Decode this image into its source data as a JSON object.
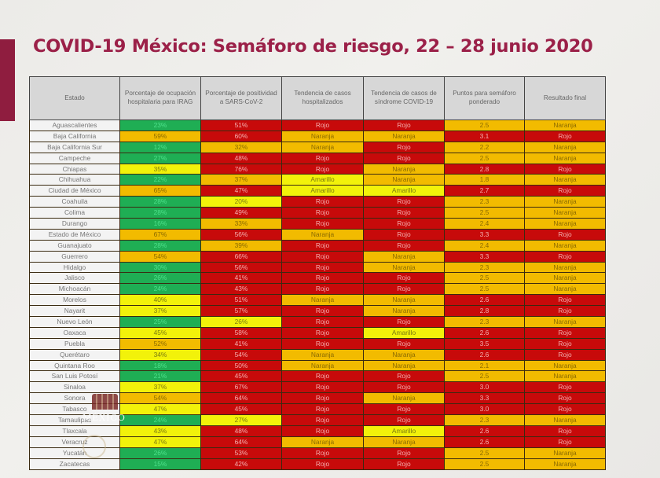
{
  "slide": {
    "title": "COVID-19 México: Semáforo de riesgo, 22 – 28 junio 2020",
    "accent_color": "#9b2048"
  },
  "colors": {
    "Verde": "#1fae54",
    "Amarillo": "#f2f20a",
    "Naranja": "#f2bb00",
    "Rojo": "#c70a0a"
  },
  "table": {
    "headers": [
      "Estado",
      "Porcentaje de ocupación hospitalaria para IRAG",
      "Porcentaje de positividad a SARS-CoV-2",
      "Tendencia de casos hospitalizados",
      "Tendencia de casos de síndrome COVID-19",
      "Puntos para semáforo ponderado",
      "Resultado final"
    ],
    "rows": [
      {
        "estado": "Aguascalientes",
        "ocupacion": "23%",
        "ocupacion_color": "Verde",
        "positividad": "51%",
        "positividad_color": "Rojo",
        "tend_hosp": "Rojo",
        "tend_covid": "Rojo",
        "puntos": "2.5",
        "puntos_color": "Naranja",
        "resultado": "Naranja"
      },
      {
        "estado": "Baja California",
        "ocupacion": "59%",
        "ocupacion_color": "Naranja",
        "positividad": "60%",
        "positividad_color": "Rojo",
        "tend_hosp": "Naranja",
        "tend_covid": "Naranja",
        "puntos": "3.1",
        "puntos_color": "Rojo",
        "resultado": "Rojo"
      },
      {
        "estado": "Baja California Sur",
        "ocupacion": "12%",
        "ocupacion_color": "Verde",
        "positividad": "32%",
        "positividad_color": "Naranja",
        "tend_hosp": "Naranja",
        "tend_covid": "Rojo",
        "puntos": "2.2",
        "puntos_color": "Naranja",
        "resultado": "Naranja"
      },
      {
        "estado": "Campeche",
        "ocupacion": "27%",
        "ocupacion_color": "Verde",
        "positividad": "48%",
        "positividad_color": "Rojo",
        "tend_hosp": "Rojo",
        "tend_covid": "Rojo",
        "puntos": "2.5",
        "puntos_color": "Naranja",
        "resultado": "Naranja"
      },
      {
        "estado": "Chiapas",
        "ocupacion": "35%",
        "ocupacion_color": "Amarillo",
        "positividad": "76%",
        "positividad_color": "Rojo",
        "tend_hosp": "Rojo",
        "tend_covid": "Naranja",
        "puntos": "2.8",
        "puntos_color": "Rojo",
        "resultado": "Rojo"
      },
      {
        "estado": "Chihuahua",
        "ocupacion": "22%",
        "ocupacion_color": "Verde",
        "positividad": "37%",
        "positividad_color": "Naranja",
        "tend_hosp": "Amarillo",
        "tend_covid": "Naranja",
        "puntos": "1.8",
        "puntos_color": "Naranja",
        "resultado": "Naranja"
      },
      {
        "estado": "Ciudad de México",
        "ocupacion": "65%",
        "ocupacion_color": "Naranja",
        "positividad": "47%",
        "positividad_color": "Rojo",
        "tend_hosp": "Amarillo",
        "tend_covid": "Amarillo",
        "puntos": "2.7",
        "puntos_color": "Rojo",
        "resultado": "Rojo"
      },
      {
        "estado": "Coahuila",
        "ocupacion": "28%",
        "ocupacion_color": "Verde",
        "positividad": "20%",
        "positividad_color": "Amarillo",
        "tend_hosp": "Rojo",
        "tend_covid": "Rojo",
        "puntos": "2.3",
        "puntos_color": "Naranja",
        "resultado": "Naranja"
      },
      {
        "estado": "Colima",
        "ocupacion": "28%",
        "ocupacion_color": "Verde",
        "positividad": "49%",
        "positividad_color": "Rojo",
        "tend_hosp": "Rojo",
        "tend_covid": "Rojo",
        "puntos": "2.5",
        "puntos_color": "Naranja",
        "resultado": "Naranja"
      },
      {
        "estado": "Durango",
        "ocupacion": "16%",
        "ocupacion_color": "Verde",
        "positividad": "33%",
        "positividad_color": "Naranja",
        "tend_hosp": "Rojo",
        "tend_covid": "Rojo",
        "puntos": "2.4",
        "puntos_color": "Naranja",
        "resultado": "Naranja"
      },
      {
        "estado": "Estado de México",
        "ocupacion": "67%",
        "ocupacion_color": "Naranja",
        "positividad": "56%",
        "positividad_color": "Rojo",
        "tend_hosp": "Naranja",
        "tend_covid": "Rojo",
        "puntos": "3.3",
        "puntos_color": "Rojo",
        "resultado": "Rojo"
      },
      {
        "estado": "Guanajuato",
        "ocupacion": "28%",
        "ocupacion_color": "Verde",
        "positividad": "39%",
        "positividad_color": "Naranja",
        "tend_hosp": "Rojo",
        "tend_covid": "Rojo",
        "puntos": "2.4",
        "puntos_color": "Naranja",
        "resultado": "Naranja"
      },
      {
        "estado": "Guerrero",
        "ocupacion": "54%",
        "ocupacion_color": "Naranja",
        "positividad": "66%",
        "positividad_color": "Rojo",
        "tend_hosp": "Rojo",
        "tend_covid": "Naranja",
        "puntos": "3.3",
        "puntos_color": "Rojo",
        "resultado": "Rojo"
      },
      {
        "estado": "Hidalgo",
        "ocupacion": "30%",
        "ocupacion_color": "Verde",
        "positividad": "56%",
        "positividad_color": "Rojo",
        "tend_hosp": "Rojo",
        "tend_covid": "Naranja",
        "puntos": "2.3",
        "puntos_color": "Naranja",
        "resultado": "Naranja"
      },
      {
        "estado": "Jalisco",
        "ocupacion": "26%",
        "ocupacion_color": "Verde",
        "positividad": "41%",
        "positividad_color": "Rojo",
        "tend_hosp": "Rojo",
        "tend_covid": "Rojo",
        "puntos": "2.5",
        "puntos_color": "Naranja",
        "resultado": "Naranja"
      },
      {
        "estado": "Michoacán",
        "ocupacion": "24%",
        "ocupacion_color": "Verde",
        "positividad": "43%",
        "positividad_color": "Rojo",
        "tend_hosp": "Rojo",
        "tend_covid": "Rojo",
        "puntos": "2.5",
        "puntos_color": "Naranja",
        "resultado": "Naranja"
      },
      {
        "estado": "Morelos",
        "ocupacion": "40%",
        "ocupacion_color": "Amarillo",
        "positividad": "51%",
        "positividad_color": "Rojo",
        "tend_hosp": "Naranja",
        "tend_covid": "Naranja",
        "puntos": "2.6",
        "puntos_color": "Rojo",
        "resultado": "Rojo"
      },
      {
        "estado": "Nayarit",
        "ocupacion": "37%",
        "ocupacion_color": "Amarillo",
        "positividad": "57%",
        "positividad_color": "Rojo",
        "tend_hosp": "Rojo",
        "tend_covid": "Naranja",
        "puntos": "2.8",
        "puntos_color": "Rojo",
        "resultado": "Rojo"
      },
      {
        "estado": "Nuevo León",
        "ocupacion": "25%",
        "ocupacion_color": "Verde",
        "positividad": "26%",
        "positividad_color": "Amarillo",
        "tend_hosp": "Rojo",
        "tend_covid": "Rojo",
        "puntos": "2.3",
        "puntos_color": "Naranja",
        "resultado": "Naranja"
      },
      {
        "estado": "Oaxaca",
        "ocupacion": "45%",
        "ocupacion_color": "Amarillo",
        "positividad": "58%",
        "positividad_color": "Rojo",
        "tend_hosp": "Rojo",
        "tend_covid": "Amarillo",
        "puntos": "2.6",
        "puntos_color": "Rojo",
        "resultado": "Rojo"
      },
      {
        "estado": "Puebla",
        "ocupacion": "52%",
        "ocupacion_color": "Naranja",
        "positividad": "41%",
        "positividad_color": "Rojo",
        "tend_hosp": "Rojo",
        "tend_covid": "Rojo",
        "puntos": "3.5",
        "puntos_color": "Rojo",
        "resultado": "Rojo"
      },
      {
        "estado": "Querétaro",
        "ocupacion": "34%",
        "ocupacion_color": "Amarillo",
        "positividad": "54%",
        "positividad_color": "Rojo",
        "tend_hosp": "Naranja",
        "tend_covid": "Naranja",
        "puntos": "2.6",
        "puntos_color": "Rojo",
        "resultado": "Rojo"
      },
      {
        "estado": "Quintana Roo",
        "ocupacion": "18%",
        "ocupacion_color": "Verde",
        "positividad": "50%",
        "positividad_color": "Rojo",
        "tend_hosp": "Naranja",
        "tend_covid": "Naranja",
        "puntos": "2.1",
        "puntos_color": "Naranja",
        "resultado": "Naranja"
      },
      {
        "estado": "San Luis Potosí",
        "ocupacion": "21%",
        "ocupacion_color": "Verde",
        "positividad": "45%",
        "positividad_color": "Rojo",
        "tend_hosp": "Rojo",
        "tend_covid": "Rojo",
        "puntos": "2.5",
        "puntos_color": "Naranja",
        "resultado": "Naranja"
      },
      {
        "estado": "Sinaloa",
        "ocupacion": "37%",
        "ocupacion_color": "Amarillo",
        "positividad": "67%",
        "positividad_color": "Rojo",
        "tend_hosp": "Rojo",
        "tend_covid": "Rojo",
        "puntos": "3.0",
        "puntos_color": "Rojo",
        "resultado": "Rojo"
      },
      {
        "estado": "Sonora",
        "ocupacion": "54%",
        "ocupacion_color": "Naranja",
        "positividad": "64%",
        "positividad_color": "Rojo",
        "tend_hosp": "Rojo",
        "tend_covid": "Naranja",
        "puntos": "3.3",
        "puntos_color": "Rojo",
        "resultado": "Rojo"
      },
      {
        "estado": "Tabasco",
        "ocupacion": "47%",
        "ocupacion_color": "Amarillo",
        "positividad": "45%",
        "positividad_color": "Rojo",
        "tend_hosp": "Rojo",
        "tend_covid": "Rojo",
        "puntos": "3.0",
        "puntos_color": "Rojo",
        "resultado": "Rojo"
      },
      {
        "estado": "Tamaulipas",
        "ocupacion": "24%",
        "ocupacion_color": "Verde",
        "positividad": "27%",
        "positividad_color": "Amarillo",
        "tend_hosp": "Rojo",
        "tend_covid": "Rojo",
        "puntos": "2.3",
        "puntos_color": "Naranja",
        "resultado": "Naranja"
      },
      {
        "estado": "Tlaxcala",
        "ocupacion": "43%",
        "ocupacion_color": "Amarillo",
        "positividad": "48%",
        "positividad_color": "Rojo",
        "tend_hosp": "Rojo",
        "tend_covid": "Amarillo",
        "puntos": "2.6",
        "puntos_color": "Rojo",
        "resultado": "Rojo"
      },
      {
        "estado": "Veracruz",
        "ocupacion": "47%",
        "ocupacion_color": "Amarillo",
        "positividad": "64%",
        "positividad_color": "Rojo",
        "tend_hosp": "Naranja",
        "tend_covid": "Naranja",
        "puntos": "2.6",
        "puntos_color": "Rojo",
        "resultado": "Rojo"
      },
      {
        "estado": "Yucatán",
        "ocupacion": "26%",
        "ocupacion_color": "Verde",
        "positividad": "53%",
        "positividad_color": "Rojo",
        "tend_hosp": "Rojo",
        "tend_covid": "Rojo",
        "puntos": "2.5",
        "puntos_color": "Naranja",
        "resultado": "Naranja"
      },
      {
        "estado": "Zacatecas",
        "ocupacion": "15%",
        "ocupacion_color": "Verde",
        "positividad": "42%",
        "positividad_color": "Rojo",
        "tend_hosp": "Rojo",
        "tend_covid": "Rojo",
        "puntos": "2.5",
        "puntos_color": "Naranja",
        "resultado": "Naranja"
      }
    ]
  },
  "watermark": {
    "text": "MÉXICO"
  }
}
